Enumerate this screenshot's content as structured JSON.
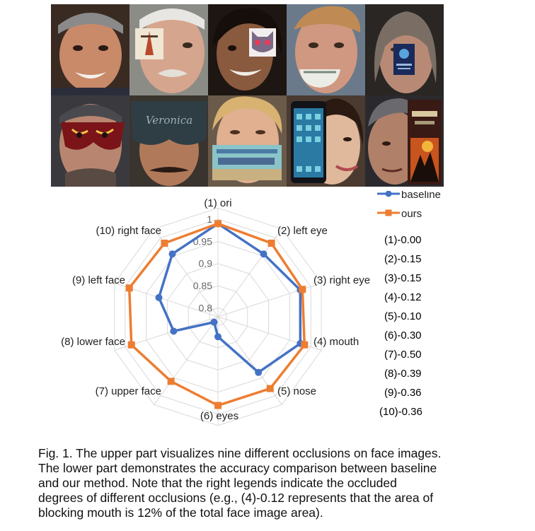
{
  "figure": {
    "caption_lines": [
      "Fig. 1. The upper part visualizes nine different occlusions on face images.",
      "The lower part demonstrates the accuracy comparison between baseline",
      "and our method. Note that the right legends indicate the occluded",
      "degrees of different occlusions (e.g., (4)-0.12 represents that the area of",
      "blocking mouth is 12% of the total face image area)."
    ],
    "occluder_texts": [
      "Veronica"
    ]
  },
  "colors": {
    "baseline": "#4472c4",
    "ours": "#ed7d31",
    "grid": "#d9d9d9"
  },
  "chart_data": {
    "type": "radar",
    "categories": [
      "(1) ori",
      "(2) left eye",
      "(3) right eye",
      "(4) mouth",
      "(5) nose",
      "(6)  eyes",
      "(7) upper face",
      "(8) lower face",
      "(9) left face",
      "(10) right face"
    ],
    "axis_ticks": [
      "0.8",
      "0.85",
      "0.9",
      "0.95",
      "1"
    ],
    "rlim": [
      0.78,
      1.0
    ],
    "series": [
      {
        "name": "baseline",
        "values": [
          0.99,
          0.955,
          0.975,
          0.975,
          0.935,
          0.825,
          0.795,
          0.885,
          0.92,
          0.955
        ]
      },
      {
        "name": "ours",
        "values": [
          0.99,
          0.985,
          0.98,
          0.985,
          0.98,
          0.98,
          0.96,
          0.985,
          0.99,
          0.985
        ]
      }
    ],
    "legend_position": "top-right",
    "occlusion_degrees": [
      "(1)-0.00",
      "(2)-0.15",
      "(3)-0.15",
      "(4)-0.12",
      "(5)-0.10",
      "(6)-0.30",
      "(7)-0.50",
      "(8)-0.39",
      "(9)-0.36",
      "(10)-0.36"
    ]
  }
}
